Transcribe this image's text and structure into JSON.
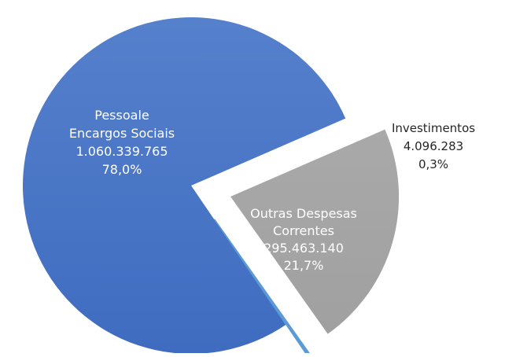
{
  "chart_data": {
    "type": "pie",
    "title": "",
    "slices": [
      {
        "label_lines": [
          "Pessoale",
          "Encargos Sociais"
        ],
        "value": 1060339765,
        "value_text": "1.060.339.765",
        "percent_text": "78,0%",
        "percent": 78.0,
        "color": "#4472C4",
        "label_color": "#ffffff",
        "exploded": false
      },
      {
        "label_lines": [
          "Investimentos"
        ],
        "value": 4096283,
        "value_text": "4.096.283",
        "percent_text": "0,3%",
        "percent": 0.3,
        "color": "#5B9BD5",
        "label_color": "#262626",
        "exploded": true
      },
      {
        "label_lines": [
          "Outras Despesas",
          "Correntes"
        ],
        "value": 295463140,
        "value_text": "295.463.140",
        "percent_text": "21,7%",
        "percent": 21.7,
        "color": "#A5A5A5",
        "label_color": "#ffffff",
        "exploded": true
      }
    ],
    "legend": "none"
  }
}
